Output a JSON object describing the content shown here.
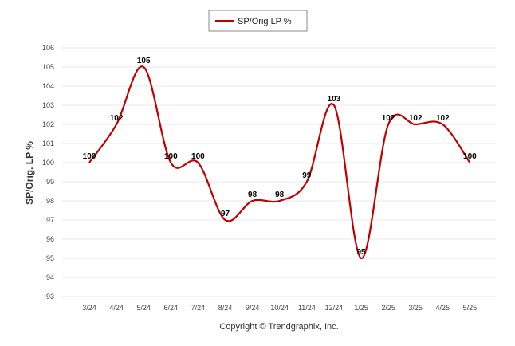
{
  "chart_data": {
    "type": "line",
    "legend": "SP/Orig LP %",
    "legend_position": "top-center",
    "ylabel": "SP/Orig. LP %",
    "xlabel": "",
    "ylim": [
      93,
      106
    ],
    "yticks": [
      "93",
      "94",
      "95",
      "96",
      "97",
      "98",
      "99",
      "100",
      "101",
      "102",
      "103",
      "104",
      "105",
      "106"
    ],
    "grid": true,
    "categories": [
      "3/24",
      "4/24",
      "5/24",
      "6/24",
      "7/24",
      "8/24",
      "9/24",
      "10/24",
      "11/24",
      "12/24",
      "1/25",
      "2/25",
      "3/25",
      "4/25",
      "5/25"
    ],
    "series": [
      {
        "name": "SP/Orig LP %",
        "color": "#c00000",
        "values": [
          100,
          102,
          105,
          100,
          100,
          97,
          98,
          98,
          99,
          103,
          95,
          102,
          102,
          102,
          100
        ],
        "labels": [
          "100",
          "102",
          "105",
          "100",
          "100",
          "97",
          "98",
          "98",
          "99",
          "103",
          "95",
          "102",
          "102",
          "102",
          "100"
        ]
      }
    ]
  },
  "footer": {
    "copyright": "Copyright © Trendgraphix, Inc."
  }
}
